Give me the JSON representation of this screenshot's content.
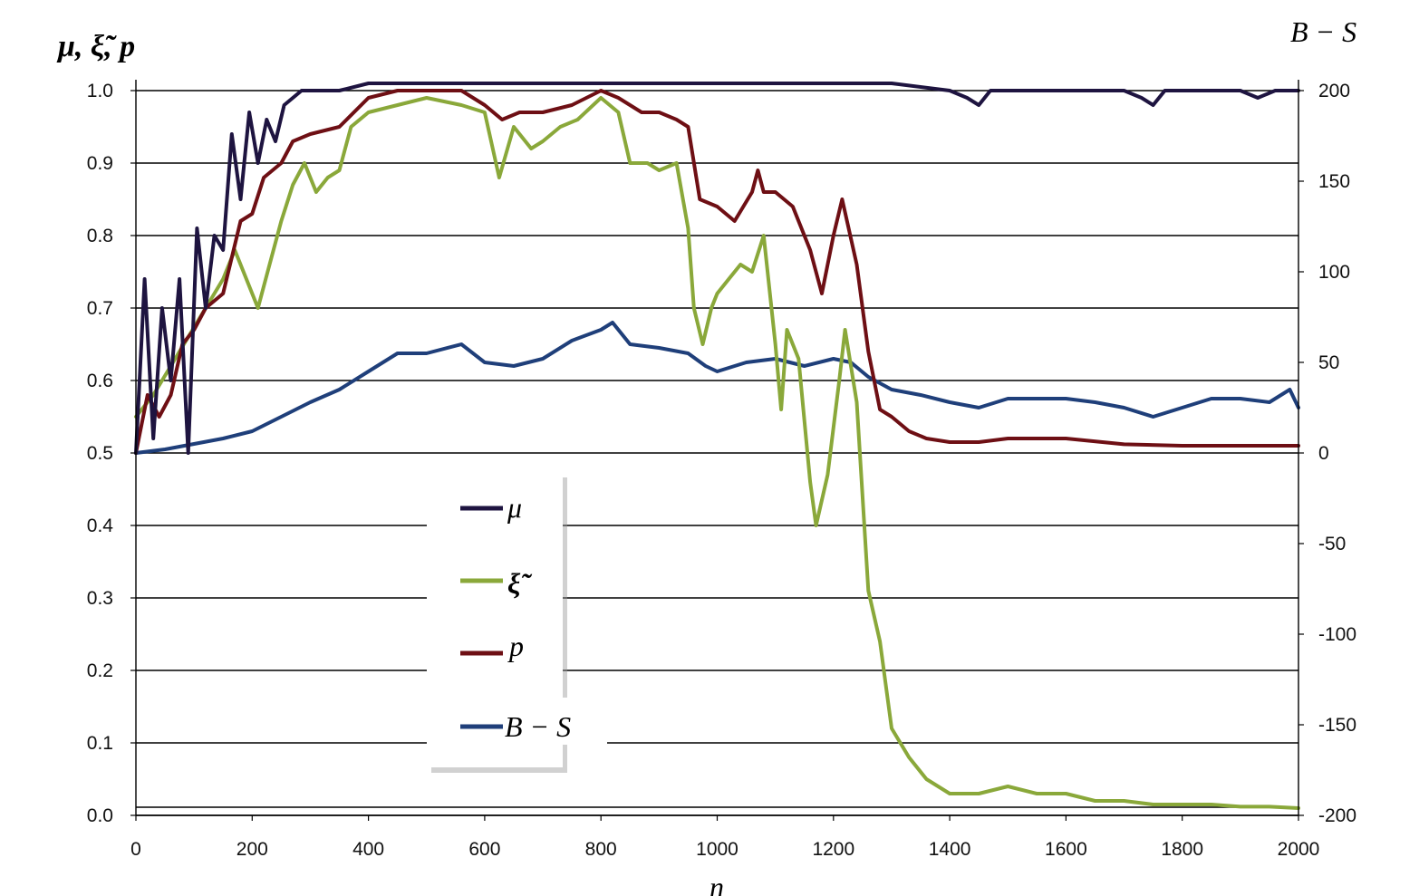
{
  "chart_data": {
    "type": "line",
    "ylabel": "μ, ξ̃, p",
    "y2label": "B − S",
    "xlabel": "n",
    "xlim": [
      0,
      2000
    ],
    "ylim": [
      0,
      1
    ],
    "y2lim": [
      -200,
      200
    ],
    "x_ticks": [
      "0",
      "200",
      "400",
      "600",
      "800",
      "1000",
      "1200",
      "1400",
      "1600",
      "1800",
      "2000"
    ],
    "y_ticks": [
      "0.0",
      "0.1",
      "0.2",
      "0.3",
      "0.4",
      "0.5",
      "0.6",
      "0.7",
      "0.8",
      "0.9",
      "1.0"
    ],
    "y2_ticks": [
      "-200",
      "-150",
      "-100",
      "-50",
      "0",
      "50",
      "100",
      "150",
      "200"
    ],
    "grid": true,
    "legend_position": "center-left",
    "colors": {
      "mu": "#1e1440",
      "xi": "#8aa83a",
      "p": "#6e0f14",
      "bs": "#1f3f7a"
    },
    "series": [
      {
        "name": "μ",
        "key": "mu",
        "axis": "left",
        "x": [
          0,
          15,
          30,
          45,
          60,
          75,
          90,
          105,
          120,
          135,
          150,
          165,
          180,
          195,
          210,
          225,
          240,
          255,
          270,
          285,
          300,
          350,
          400,
          500,
          600,
          700,
          800,
          900,
          1000,
          1100,
          1200,
          1300,
          1400,
          1430,
          1450,
          1470,
          1500,
          1600,
          1700,
          1730,
          1750,
          1770,
          1800,
          1900,
          1930,
          1960,
          2000
        ],
        "y": [
          0.5,
          0.74,
          0.52,
          0.7,
          0.6,
          0.74,
          0.5,
          0.81,
          0.7,
          0.8,
          0.78,
          0.94,
          0.85,
          0.97,
          0.9,
          0.96,
          0.93,
          0.98,
          0.99,
          1.0,
          1.0,
          1.0,
          1.01,
          1.01,
          1.01,
          1.01,
          1.01,
          1.01,
          1.01,
          1.01,
          1.01,
          1.01,
          1.0,
          0.99,
          0.98,
          1.0,
          1.0,
          1.0,
          1.0,
          0.99,
          0.98,
          1.0,
          1.0,
          1.0,
          0.99,
          1.0,
          1.0
        ]
      },
      {
        "name": "ξ̃",
        "key": "xi",
        "axis": "left",
        "x": [
          0,
          30,
          60,
          90,
          120,
          150,
          170,
          190,
          210,
          230,
          250,
          270,
          290,
          310,
          330,
          350,
          370,
          400,
          450,
          500,
          560,
          600,
          625,
          650,
          680,
          700,
          730,
          760,
          800,
          830,
          850,
          880,
          900,
          930,
          950,
          960,
          975,
          990,
          1000,
          1020,
          1040,
          1060,
          1080,
          1100,
          1110,
          1120,
          1140,
          1160,
          1170,
          1190,
          1210,
          1220,
          1240,
          1260,
          1280,
          1300,
          1330,
          1360,
          1400,
          1450,
          1500,
          1550,
          1600,
          1650,
          1700,
          1750,
          1800,
          1850,
          1900,
          1950,
          2000
        ],
        "y": [
          0.55,
          0.58,
          0.62,
          0.66,
          0.7,
          0.74,
          0.78,
          0.74,
          0.7,
          0.76,
          0.82,
          0.87,
          0.9,
          0.86,
          0.88,
          0.89,
          0.95,
          0.97,
          0.98,
          0.99,
          0.98,
          0.97,
          0.88,
          0.95,
          0.92,
          0.93,
          0.95,
          0.96,
          0.99,
          0.97,
          0.9,
          0.9,
          0.89,
          0.9,
          0.81,
          0.7,
          0.65,
          0.7,
          0.72,
          0.74,
          0.76,
          0.75,
          0.8,
          0.65,
          0.56,
          0.67,
          0.63,
          0.46,
          0.4,
          0.47,
          0.6,
          0.67,
          0.57,
          0.31,
          0.24,
          0.12,
          0.08,
          0.05,
          0.03,
          0.03,
          0.04,
          0.03,
          0.03,
          0.02,
          0.02,
          0.015,
          0.015,
          0.015,
          0.012,
          0.012,
          0.01
        ]
      },
      {
        "name": "p",
        "key": "p",
        "axis": "left",
        "x": [
          0,
          20,
          40,
          60,
          80,
          100,
          120,
          150,
          180,
          200,
          220,
          250,
          270,
          300,
          350,
          400,
          450,
          500,
          560,
          600,
          630,
          660,
          700,
          750,
          800,
          830,
          870,
          900,
          930,
          950,
          970,
          1000,
          1030,
          1060,
          1070,
          1080,
          1100,
          1130,
          1160,
          1180,
          1200,
          1215,
          1240,
          1260,
          1280,
          1300,
          1330,
          1360,
          1400,
          1450,
          1500,
          1600,
          1700,
          1800,
          1900,
          2000
        ],
        "y": [
          0.5,
          0.58,
          0.55,
          0.58,
          0.65,
          0.67,
          0.7,
          0.72,
          0.82,
          0.83,
          0.88,
          0.9,
          0.93,
          0.94,
          0.95,
          0.99,
          1.0,
          1.0,
          1.0,
          0.98,
          0.96,
          0.97,
          0.97,
          0.98,
          1.0,
          0.99,
          0.97,
          0.97,
          0.96,
          0.95,
          0.85,
          0.84,
          0.82,
          0.86,
          0.89,
          0.86,
          0.86,
          0.84,
          0.78,
          0.72,
          0.8,
          0.85,
          0.76,
          0.64,
          0.56,
          0.55,
          0.53,
          0.52,
          0.515,
          0.515,
          0.52,
          0.52,
          0.512,
          0.51,
          0.51,
          0.51
        ]
      },
      {
        "name": "B − S",
        "key": "bs",
        "axis": "right",
        "x": [
          0,
          50,
          100,
          150,
          200,
          250,
          300,
          350,
          400,
          450,
          500,
          560,
          600,
          650,
          700,
          750,
          800,
          820,
          850,
          900,
          950,
          980,
          1000,
          1050,
          1100,
          1150,
          1200,
          1230,
          1260,
          1300,
          1350,
          1400,
          1450,
          1500,
          1550,
          1600,
          1650,
          1700,
          1750,
          1800,
          1850,
          1900,
          1950,
          1985,
          2000
        ],
        "y": [
          0,
          2,
          5,
          8,
          12,
          20,
          28,
          35,
          45,
          55,
          55,
          60,
          50,
          48,
          52,
          62,
          68,
          72,
          60,
          58,
          55,
          48,
          45,
          50,
          52,
          48,
          52,
          50,
          42,
          35,
          32,
          28,
          25,
          30,
          30,
          30,
          28,
          25,
          20,
          25,
          30,
          30,
          28,
          35,
          25
        ]
      }
    ]
  }
}
